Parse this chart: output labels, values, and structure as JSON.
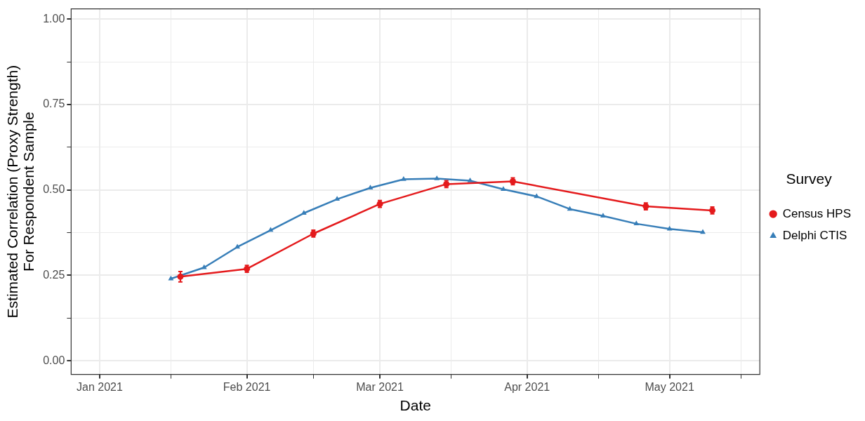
{
  "chart_data": {
    "type": "line",
    "xlabel": "Date",
    "ylabel": "Estimated Correlation (Proxy Strength)\nFor Respondent Sample",
    "legend_title": "Survey",
    "legend": "right",
    "grid": true,
    "line_style": "solid",
    "xlim": [
      "2020-12-26",
      "2021-05-20"
    ],
    "xticks": [
      {
        "value": "2021-01-01",
        "label": "Jan 2021"
      },
      {
        "value": "2021-01-16",
        "label": null
      },
      {
        "value": "2021-02-01",
        "label": "Feb 2021"
      },
      {
        "value": "2021-02-15",
        "label": null
      },
      {
        "value": "2021-03-01",
        "label": "Mar 2021"
      },
      {
        "value": "2021-03-16",
        "label": null
      },
      {
        "value": "2021-04-01",
        "label": "Apr 2021"
      },
      {
        "value": "2021-04-16",
        "label": null
      },
      {
        "value": "2021-05-01",
        "label": "May 2021"
      },
      {
        "value": "2021-05-16",
        "label": null
      }
    ],
    "ylim": [
      -0.04,
      1.03
    ],
    "yticks": [
      {
        "value": 0,
        "label": "0.00"
      },
      {
        "value": 0.125,
        "label": null
      },
      {
        "value": 0.25,
        "label": "0.25"
      },
      {
        "value": 0.375,
        "label": null
      },
      {
        "value": 0.5,
        "label": "0.50"
      },
      {
        "value": 0.625,
        "label": null
      },
      {
        "value": 0.75,
        "label": "0.75"
      },
      {
        "value": 0.875,
        "label": null
      },
      {
        "value": 1,
        "label": "1.00"
      }
    ],
    "series": [
      {
        "name": "Census HPS",
        "color": "#e41a1c",
        "marker": "circle",
        "x": [
          "2021-01-18",
          "2021-02-01",
          "2021-02-15",
          "2021-03-01",
          "2021-03-15",
          "2021-03-29",
          "2021-04-26",
          "2021-05-10"
        ],
        "values": [
          0.246,
          0.269,
          0.372,
          0.459,
          0.517,
          0.525,
          0.452,
          0.44
        ],
        "errors": [
          0.015,
          0.01,
          0.01,
          0.01,
          0.01,
          0.01,
          0.01,
          0.01
        ]
      },
      {
        "name": "Delphi CTIS",
        "color": "#377eb8",
        "marker": "triangle",
        "x": [
          "2021-01-16",
          "2021-01-23",
          "2021-01-30",
          "2021-02-06",
          "2021-02-13",
          "2021-02-20",
          "2021-02-27",
          "2021-03-06",
          "2021-03-13",
          "2021-03-20",
          "2021-03-27",
          "2021-04-03",
          "2021-04-10",
          "2021-04-17",
          "2021-04-24",
          "2021-05-01",
          "2021-05-08"
        ],
        "values": [
          0.24,
          0.273,
          0.333,
          0.382,
          0.432,
          0.473,
          0.506,
          0.531,
          0.533,
          0.527,
          0.502,
          0.481,
          0.444,
          0.424,
          0.401,
          0.386,
          0.376
        ]
      }
    ]
  }
}
